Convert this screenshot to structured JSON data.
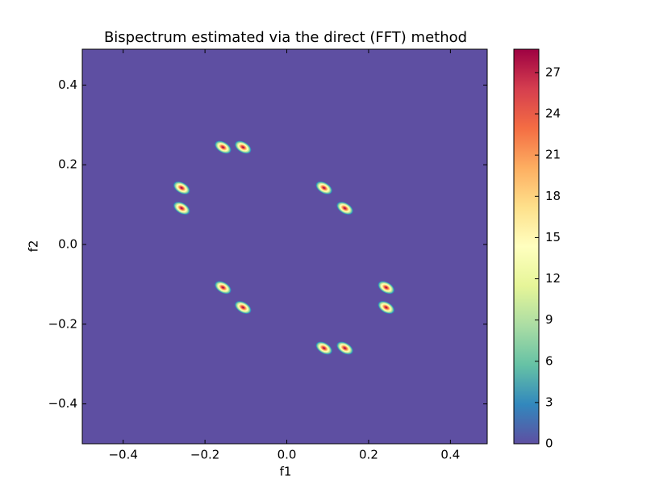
{
  "chart_data": {
    "type": "heatmap",
    "title": "Bispectrum estimated via the direct (FFT) method",
    "xlabel": "f1",
    "ylabel": "f2",
    "x": [
      -0.156,
      -0.107,
      -0.257,
      -0.257,
      0.091,
      0.142,
      -0.156,
      -0.107,
      0.243,
      0.243,
      0.091,
      0.142
    ],
    "y": [
      0.244,
      0.244,
      0.142,
      0.091,
      0.142,
      0.091,
      -0.108,
      -0.158,
      -0.108,
      -0.158,
      -0.26,
      -0.26
    ],
    "values": [
      29,
      29,
      29,
      29,
      29,
      29,
      29,
      29,
      29,
      29,
      29,
      29
    ],
    "xlim": [
      -0.5,
      0.49
    ],
    "ylim": [
      -0.5,
      0.49
    ],
    "xticks": [
      {
        "value": -0.4,
        "label": "−0.4"
      },
      {
        "value": -0.2,
        "label": "−0.2"
      },
      {
        "value": 0,
        "label": "0.0"
      },
      0.2,
      0.4
    ],
    "yticks": [
      {
        "value": -0.4,
        "label": "−0.4"
      },
      {
        "value": -0.2,
        "label": "−0.2"
      },
      {
        "value": 0,
        "label": "0.0"
      },
      0.2,
      0.4
    ],
    "clim": [
      0,
      28.7
    ],
    "cticks": [
      0,
      3,
      6,
      9,
      12,
      15,
      18,
      21,
      24,
      27
    ],
    "colormap": "Spectral"
  }
}
